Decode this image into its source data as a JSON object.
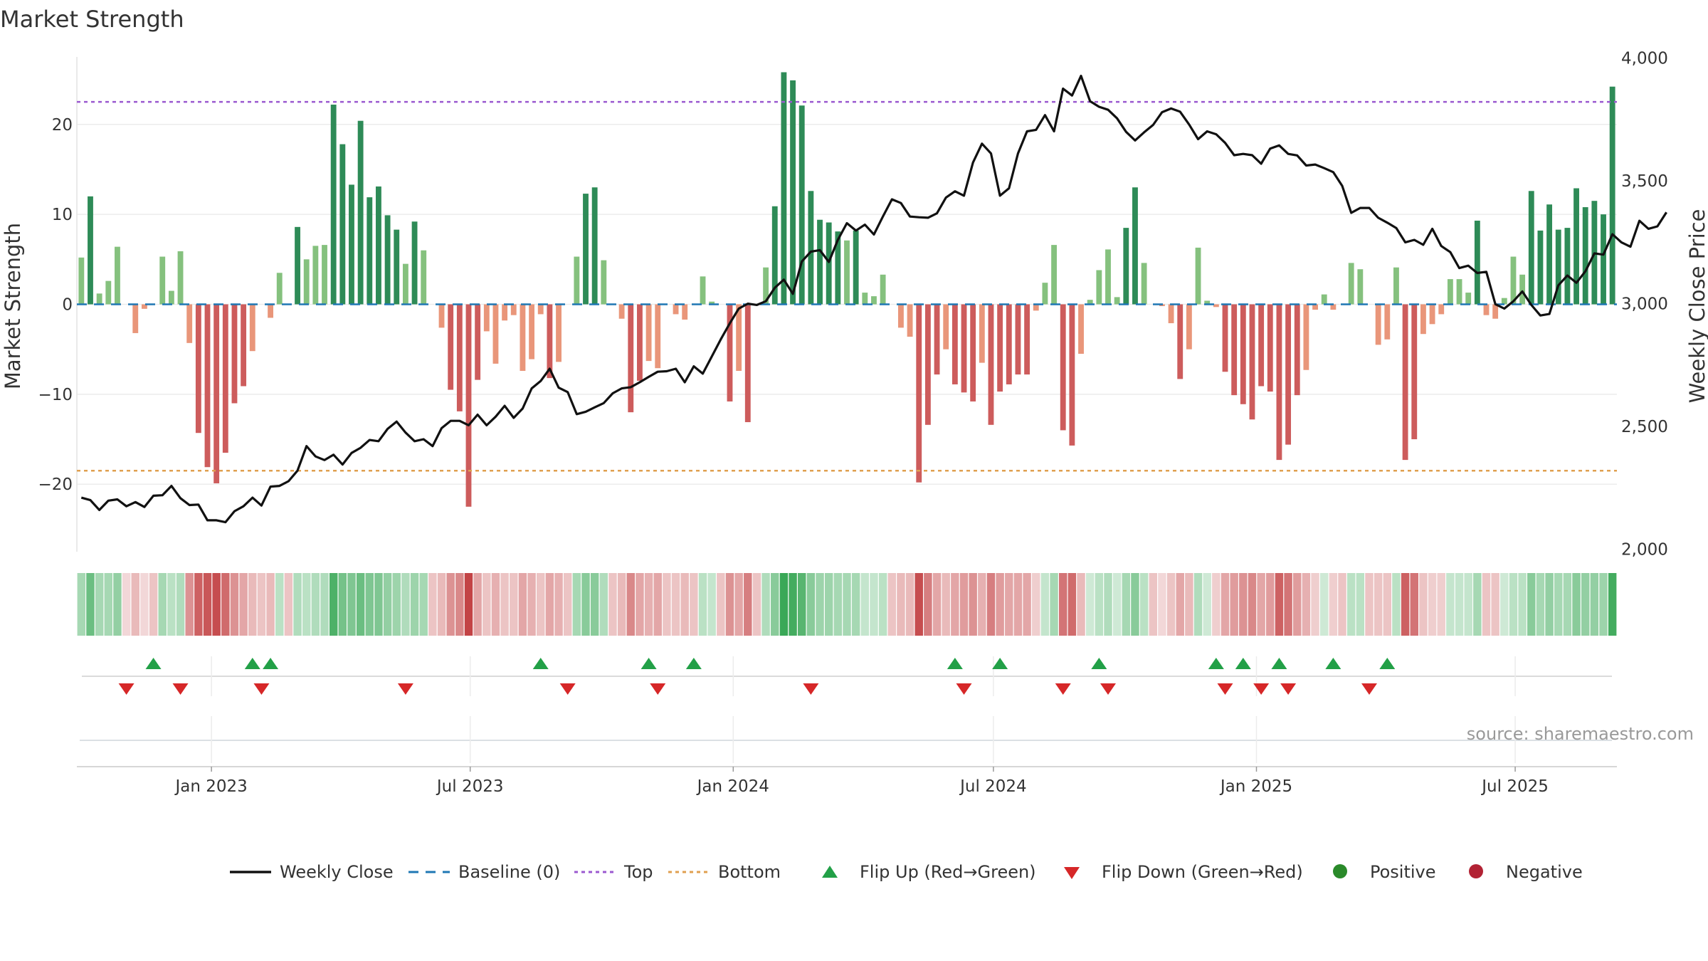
{
  "chart_data": {
    "type": "bar",
    "title": "Market Strength",
    "ylabel_left": "Market Strength",
    "ylabel_right": "Weekly Close Price",
    "y_left_ticks": [
      20,
      10,
      0,
      -10,
      -20
    ],
    "y_left_tick_labels": [
      "20",
      "10",
      "0",
      "−10",
      "−20"
    ],
    "y_left_range": [
      -27.5,
      27.5
    ],
    "y_right_ticks": [
      4000,
      3500,
      3000,
      2500,
      2000
    ],
    "y_right_tick_labels": [
      "4,000",
      "3,500",
      "3,000",
      "2,500",
      "2,000"
    ],
    "y_right_range": [
      1990,
      4005
    ],
    "top_threshold": 22.5,
    "bottom_threshold": -18.5,
    "x_start": "2022-10-02",
    "x_end": "2025-09-07",
    "x_ticks": [
      {
        "label": "Jan 2023",
        "date": "2023-01-01"
      },
      {
        "label": "Jul 2023",
        "date": "2023-07-01"
      },
      {
        "label": "Jan 2024",
        "date": "2024-01-01"
      },
      {
        "label": "Jul 2024",
        "date": "2024-07-01"
      },
      {
        "label": "Jan 2025",
        "date": "2025-01-01"
      },
      {
        "label": "Jul 2025",
        "date": "2025-07-01"
      }
    ],
    "strength": [
      5.2,
      12,
      1.2,
      2.6,
      6.4,
      0,
      -3.2,
      -0.5,
      0,
      5.3,
      1.5,
      5.9,
      -4.3,
      -14.3,
      -18.1,
      -19.9,
      -16.5,
      -11,
      -9.1,
      -5.2,
      0,
      -1.5,
      3.5,
      0,
      8.6,
      5,
      6.5,
      6.6,
      22.2,
      17.8,
      13.3,
      20.4,
      11.9,
      13.1,
      9.9,
      8.3,
      4.5,
      9.2,
      6,
      0,
      -2.6,
      -9.5,
      -11.9,
      -22.5,
      -8.4,
      -3,
      -6.6,
      -1.8,
      -1.2,
      -7.4,
      -6.1,
      -1.1,
      -8.2,
      -6.4,
      0,
      5.3,
      12.3,
      13,
      4.9,
      0,
      -1.6,
      -12,
      -8.5,
      -6.3,
      -7.1,
      0,
      -1.1,
      -1.7,
      0,
      3.1,
      0.3,
      0,
      -10.8,
      -7.4,
      -13.1,
      0,
      4.1,
      10.9,
      25.8,
      24.9,
      22.1,
      12.6,
      9.4,
      9.1,
      8.1,
      7.1,
      8.2,
      1.3,
      0.9,
      3.3,
      0,
      -2.6,
      -3.6,
      -19.8,
      -13.4,
      -7.8,
      -5,
      -8.9,
      -9.8,
      -10.8,
      -6.5,
      -13.4,
      -9.7,
      -8.9,
      -7.8,
      -7.8,
      -0.7,
      2.4,
      6.6,
      -14,
      -15.7,
      -5.5,
      0.5,
      3.8,
      6.1,
      0.8,
      8.5,
      13,
      4.6,
      0,
      -0.2,
      -2.1,
      -8.3,
      -5,
      6.3,
      0.4,
      -0.3,
      -7.5,
      -10.1,
      -11.1,
      -12.8,
      -9.1,
      -9.7,
      -17.3,
      -15.6,
      -10.1,
      -7.3,
      -0.6,
      1.1,
      -0.6,
      0,
      4.6,
      3.9,
      0,
      -4.5,
      -3.9,
      4.1,
      -17.3,
      -15,
      -3.3,
      -2.2,
      -1.1,
      2.8,
      2.8,
      1.3,
      9.3,
      -1.2,
      -1.6,
      0.7,
      5.3,
      3.3,
      12.6,
      8.2,
      11.1,
      8.3,
      8.5,
      12.9,
      10.8,
      11.5,
      10,
      24.2
    ],
    "close": [
      2210,
      2200,
      2160,
      2198,
      2203,
      2175,
      2192,
      2172,
      2218,
      2220,
      2258,
      2208,
      2180,
      2182,
      2118,
      2118,
      2110,
      2155,
      2175,
      2210,
      2178,
      2255,
      2258,
      2277,
      2320,
      2420,
      2378,
      2363,
      2385,
      2345,
      2392,
      2413,
      2445,
      2440,
      2490,
      2520,
      2475,
      2440,
      2448,
      2420,
      2493,
      2523,
      2523,
      2505,
      2548,
      2505,
      2540,
      2584,
      2535,
      2573,
      2655,
      2685,
      2735,
      2658,
      2640,
      2550,
      2560,
      2578,
      2595,
      2635,
      2655,
      2660,
      2680,
      2702,
      2723,
      2725,
      2735,
      2680,
      2745,
      2715,
      2785,
      2855,
      2920,
      2980,
      3000,
      2995,
      3010,
      3065,
      3098,
      3040,
      3172,
      3212,
      3218,
      3170,
      3260,
      3328,
      3298,
      3322,
      3282,
      3355,
      3425,
      3410,
      3355,
      3352,
      3350,
      3368,
      3432,
      3458,
      3440,
      3575,
      3652,
      3612,
      3440,
      3470,
      3612,
      3702,
      3708,
      3768,
      3702,
      3876,
      3848,
      3928,
      3825,
      3802,
      3790,
      3755,
      3700,
      3665,
      3698,
      3728,
      3780,
      3795,
      3782,
      3730,
      3670,
      3702,
      3690,
      3655,
      3605,
      3610,
      3605,
      3570,
      3632,
      3645,
      3610,
      3604,
      3563,
      3567,
      3552,
      3536,
      3480,
      3370,
      3390,
      3390,
      3350,
      3330,
      3308,
      3250,
      3260,
      3240,
      3305,
      3235,
      3210,
      3145,
      3155,
      3125,
      3130,
      2998,
      2980,
      3010,
      3050,
      2995,
      2952,
      2958,
      3075,
      3115,
      3085,
      3132,
      3205,
      3200,
      3283,
      3250,
      3232,
      3338,
      3305,
      3315,
      3372
    ],
    "strip_shades": [
      0.45,
      0.75,
      0.45,
      0.45,
      0.55,
      0.2,
      0.35,
      0.2,
      0.3,
      0.45,
      0.35,
      0.4,
      0.55,
      0.8,
      0.85,
      0.9,
      0.75,
      0.55,
      0.45,
      0.35,
      0.3,
      0.35,
      0.35,
      0.3,
      0.4,
      0.35,
      0.4,
      0.4,
      0.9,
      0.7,
      0.65,
      0.75,
      0.65,
      0.65,
      0.55,
      0.5,
      0.4,
      0.5,
      0.45,
      0.3,
      0.35,
      0.55,
      0.6,
      0.95,
      0.45,
      0.3,
      0.4,
      0.3,
      0.3,
      0.45,
      0.4,
      0.3,
      0.45,
      0.4,
      0.3,
      0.45,
      0.6,
      0.6,
      0.4,
      0.3,
      0.35,
      0.6,
      0.45,
      0.4,
      0.45,
      0.3,
      0.3,
      0.35,
      0.3,
      0.35,
      0.3,
      0.3,
      0.55,
      0.45,
      0.65,
      0.3,
      0.4,
      0.6,
      1,
      0.95,
      0.85,
      0.6,
      0.5,
      0.5,
      0.45,
      0.45,
      0.45,
      0.3,
      0.3,
      0.35,
      0.3,
      0.35,
      0.35,
      0.9,
      0.65,
      0.45,
      0.35,
      0.45,
      0.5,
      0.55,
      0.4,
      0.65,
      0.5,
      0.45,
      0.45,
      0.45,
      0.25,
      0.3,
      0.45,
      0.7,
      0.75,
      0.35,
      0.25,
      0.35,
      0.4,
      0.25,
      0.45,
      0.6,
      0.35,
      0.3,
      0.2,
      0.3,
      0.45,
      0.35,
      0.4,
      0.25,
      0.25,
      0.45,
      0.5,
      0.55,
      0.6,
      0.45,
      0.5,
      0.8,
      0.7,
      0.5,
      0.4,
      0.25,
      0.25,
      0.25,
      0.3,
      0.35,
      0.35,
      0.3,
      0.3,
      0.3,
      0.35,
      0.8,
      0.7,
      0.3,
      0.25,
      0.25,
      0.3,
      0.3,
      0.3,
      0.45,
      0.3,
      0.3,
      0.25,
      0.35,
      0.35,
      0.6,
      0.45,
      0.55,
      0.45,
      0.45,
      0.6,
      0.55,
      0.55,
      0.5,
      0.95
    ],
    "flip_up_weeks": [
      8,
      19,
      21,
      51,
      63,
      68,
      97,
      102,
      113,
      126,
      129,
      133,
      139,
      145
    ],
    "flip_down_weeks": [
      5,
      11,
      20,
      36,
      54,
      64,
      81,
      98,
      109,
      114,
      127,
      131,
      134,
      143
    ],
    "colors": {
      "strong_green": "#2e8b57",
      "light_green": "#85c17e",
      "strong_red": "#cd5c5c",
      "light_red": "#e9967a",
      "strip_green": "#3aa857",
      "strip_red": "#c0393b",
      "weekly_close": "#111111",
      "baseline": "#1f77b4",
      "top": "#9b59d0",
      "bottom": "#e0a050",
      "flip_up": "#22a047",
      "flip_down": "#d62728",
      "positive": "#2a8a2a",
      "negative": "#b22234"
    },
    "legend": [
      {
        "key": "weekly_close",
        "label": "Weekly Close"
      },
      {
        "key": "baseline",
        "label": "Baseline (0)"
      },
      {
        "key": "top",
        "label": "Top"
      },
      {
        "key": "bottom",
        "label": "Bottom"
      },
      {
        "key": "flip_up",
        "label": "Flip Up (Red→Green)"
      },
      {
        "key": "flip_down",
        "label": "Flip Down (Green→Red)"
      },
      {
        "key": "positive",
        "label": "Positive"
      },
      {
        "key": "negative",
        "label": "Negative"
      }
    ],
    "source": "source: sharemaestro.com"
  }
}
